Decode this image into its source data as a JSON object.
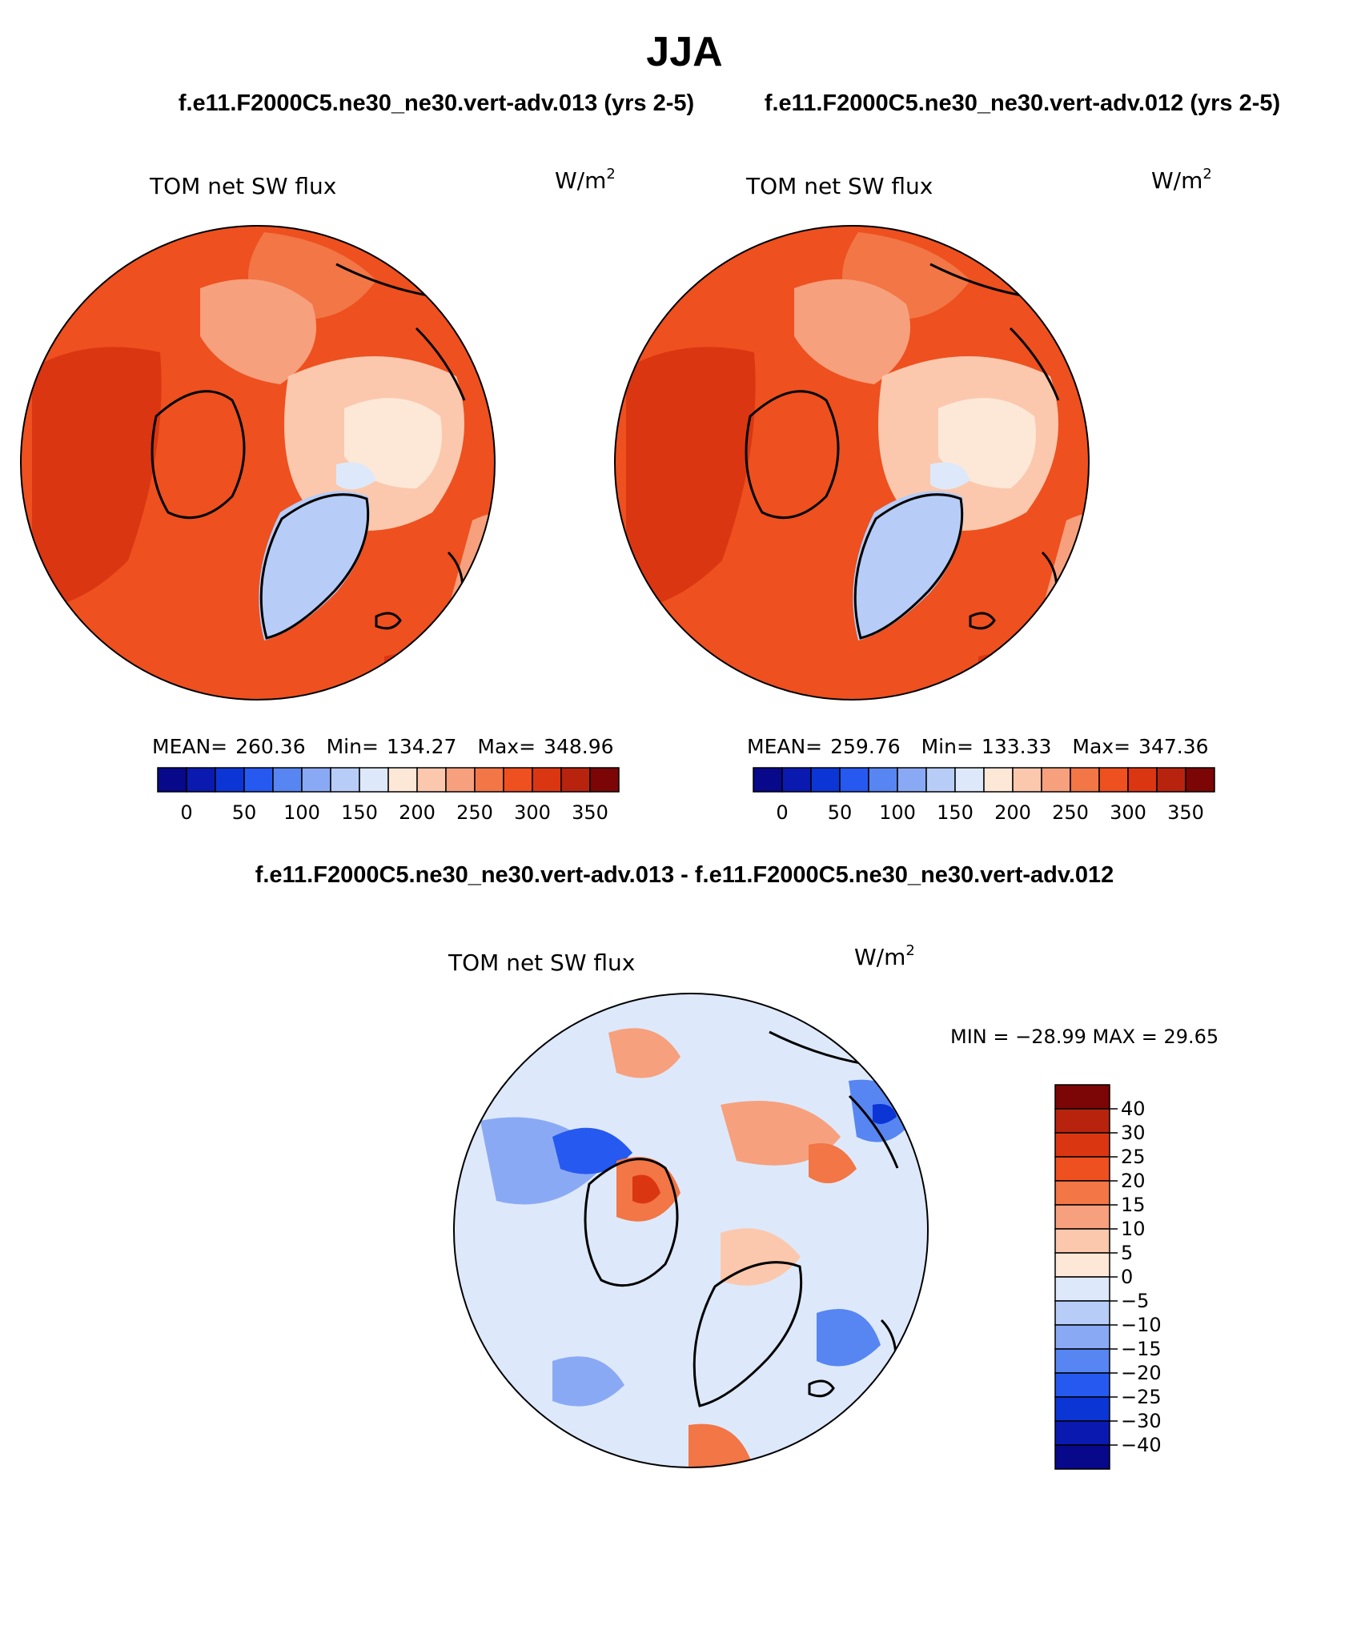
{
  "title": "JJA",
  "header": {
    "case_left": "f.e11.F2000C5.ne30_ne30.vert-adv.013 (yrs 2-5)",
    "case_right": "f.e11.F2000C5.ne30_ne30.vert-adv.012 (yrs 2-5)"
  },
  "colors": {
    "abs_levels": [
      "#08088a",
      "#0a1ab0",
      "#0c35d6",
      "#2659ef",
      "#5785f2",
      "#8aa9f5",
      "#b7cdf7",
      "#dde9fa",
      "#fde8d8",
      "#fbc8ad",
      "#f7a07d",
      "#f27646",
      "#ee501f",
      "#db3612",
      "#b8230e",
      "#7c0505"
    ],
    "diff_levels": [
      "#08088a",
      "#0a1ab0",
      "#0c35d6",
      "#2659ef",
      "#5785f2",
      "#8aa9f5",
      "#b7cdf7",
      "#dde9fa",
      "#fde8d8",
      "#fbc8ad",
      "#f7a07d",
      "#f27646",
      "#ee501f",
      "#db3612",
      "#b8230e",
      "#7c0505"
    ],
    "land_outline": "#000000"
  },
  "panels": [
    {
      "field": "TOM net SW flux",
      "units_base": "W/m",
      "units_exp": "2",
      "mean_label": "MEAN=",
      "mean": "260.36",
      "min_label": "Min=",
      "min": "134.27",
      "max_label": "Max=",
      "max": "348.96",
      "colorbar_ticks": [
        "0",
        "50",
        "100",
        "150",
        "200",
        "250",
        "300",
        "350"
      ]
    },
    {
      "field": "TOM net SW flux",
      "units_base": "W/m",
      "units_exp": "2",
      "mean_label": "MEAN=",
      "mean": "259.76",
      "min_label": "Min=",
      "min": "133.33",
      "max_label": "Max=",
      "max": "347.36",
      "colorbar_ticks": [
        "0",
        "50",
        "100",
        "150",
        "200",
        "250",
        "300",
        "350"
      ]
    }
  ],
  "difference": {
    "title": "f.e11.F2000C5.ne30_ne30.vert-adv.013 - f.e11.F2000C5.ne30_ne30.vert-adv.012",
    "field": "TOM net SW flux",
    "units_base": "W/m",
    "units_exp": "2",
    "minmax": "MIN = −28.99 MAX =   29.65",
    "colorbar_ticks": [
      "40",
      "30",
      "25",
      "20",
      "15",
      "10",
      "5",
      "0",
      "−5",
      "−10",
      "−15",
      "−20",
      "−25",
      "−30",
      "−40"
    ]
  },
  "chart_data": [
    {
      "type": "heatmap",
      "projection": "north-polar-stereographic",
      "title": "TOM net SW flux",
      "units": "W/m2",
      "season": "JJA",
      "case": "f.e11.F2000C5.ne30_ne30.vert-adv.013 (yrs 2-5)",
      "mean": 260.36,
      "min": 134.27,
      "max": 348.96,
      "levels": [
        0,
        25,
        50,
        75,
        100,
        125,
        150,
        175,
        200,
        225,
        250,
        275,
        300,
        325,
        350
      ]
    },
    {
      "type": "heatmap",
      "projection": "north-polar-stereographic",
      "title": "TOM net SW flux",
      "units": "W/m2",
      "season": "JJA",
      "case": "f.e11.F2000C5.ne30_ne30.vert-adv.012 (yrs 2-5)",
      "mean": 259.76,
      "min": 133.33,
      "max": 347.36,
      "levels": [
        0,
        25,
        50,
        75,
        100,
        125,
        150,
        175,
        200,
        225,
        250,
        275,
        300,
        325,
        350
      ]
    },
    {
      "type": "heatmap",
      "projection": "north-polar-stereographic",
      "title": "TOM net SW flux",
      "units": "W/m2",
      "case": "f.e11.F2000C5.ne30_ne30.vert-adv.013 - f.e11.F2000C5.ne30_ne30.vert-adv.012",
      "min": -28.99,
      "max": 29.65,
      "levels": [
        -40,
        -30,
        -25,
        -20,
        -15,
        -10,
        -5,
        0,
        5,
        10,
        15,
        20,
        25,
        30,
        40
      ]
    }
  ]
}
